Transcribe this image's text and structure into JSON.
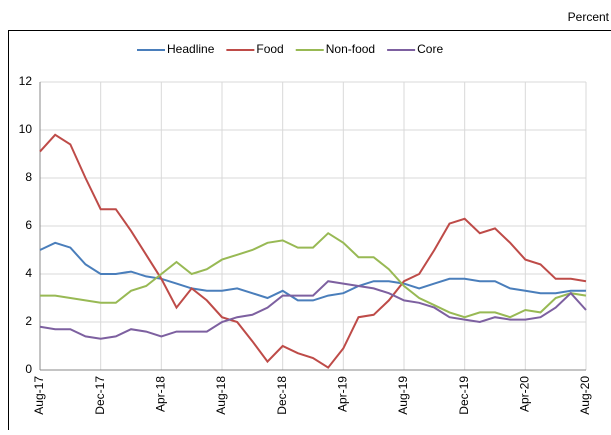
{
  "chart_data": {
    "type": "line",
    "unit_label": "Percent",
    "categories": [
      "Aug-17",
      null,
      null,
      null,
      "Dec-17",
      null,
      null,
      null,
      "Apr-18",
      null,
      null,
      null,
      "Aug-18",
      null,
      null,
      null,
      "Dec-18",
      null,
      null,
      null,
      "Apr-19",
      null,
      null,
      null,
      "Aug-19",
      null,
      null,
      null,
      "Dec-19",
      null,
      null,
      null,
      "Apr-20",
      null,
      null,
      null,
      "Aug-20"
    ],
    "series": [
      {
        "name": "Headline",
        "color": "#4a7ebb",
        "values": [
          5.0,
          5.3,
          5.1,
          4.4,
          4.0,
          4.0,
          4.1,
          3.9,
          3.8,
          3.6,
          3.4,
          3.3,
          3.3,
          3.4,
          3.2,
          3.0,
          3.3,
          2.9,
          2.9,
          3.1,
          3.2,
          3.5,
          3.7,
          3.7,
          3.6,
          3.4,
          3.6,
          3.8,
          3.8,
          3.7,
          3.7,
          3.4,
          3.3,
          3.2,
          3.2,
          3.3,
          3.3
        ]
      },
      {
        "name": "Food",
        "color": "#be4b48",
        "values": [
          9.1,
          9.8,
          9.4,
          8.0,
          6.7,
          6.7,
          5.8,
          4.8,
          3.8,
          2.6,
          3.4,
          2.9,
          2.2,
          2.0,
          1.2,
          0.35,
          1.0,
          0.7,
          0.5,
          0.1,
          0.9,
          2.2,
          2.3,
          2.9,
          3.7,
          4.0,
          5.0,
          6.1,
          6.3,
          5.7,
          5.9,
          5.3,
          4.6,
          4.4,
          3.8,
          3.8,
          3.7
        ]
      },
      {
        "name": "Non-food",
        "color": "#98b954",
        "values": [
          3.1,
          3.1,
          3.0,
          2.9,
          2.8,
          2.8,
          3.3,
          3.5,
          4.0,
          4.5,
          4.0,
          4.2,
          4.6,
          4.8,
          5.0,
          5.3,
          5.4,
          5.1,
          5.1,
          5.7,
          5.3,
          4.7,
          4.7,
          4.2,
          3.5,
          3.0,
          2.7,
          2.4,
          2.2,
          2.4,
          2.4,
          2.2,
          2.5,
          2.4,
          3.0,
          3.2,
          3.1
        ]
      },
      {
        "name": "Core",
        "color": "#7d60a0",
        "values": [
          1.8,
          1.7,
          1.7,
          1.4,
          1.3,
          1.4,
          1.7,
          1.6,
          1.4,
          1.6,
          1.6,
          1.6,
          2.0,
          2.2,
          2.3,
          2.6,
          3.1,
          3.1,
          3.1,
          3.7,
          3.6,
          3.5,
          3.4,
          3.2,
          2.9,
          2.8,
          2.6,
          2.2,
          2.1,
          2.0,
          2.2,
          2.1,
          2.1,
          2.2,
          2.6,
          3.2,
          2.5
        ]
      }
    ],
    "ylim": [
      0,
      12
    ],
    "yticks": [
      0,
      2,
      4,
      6,
      8,
      10,
      12
    ],
    "grid": true,
    "legend": "top"
  }
}
